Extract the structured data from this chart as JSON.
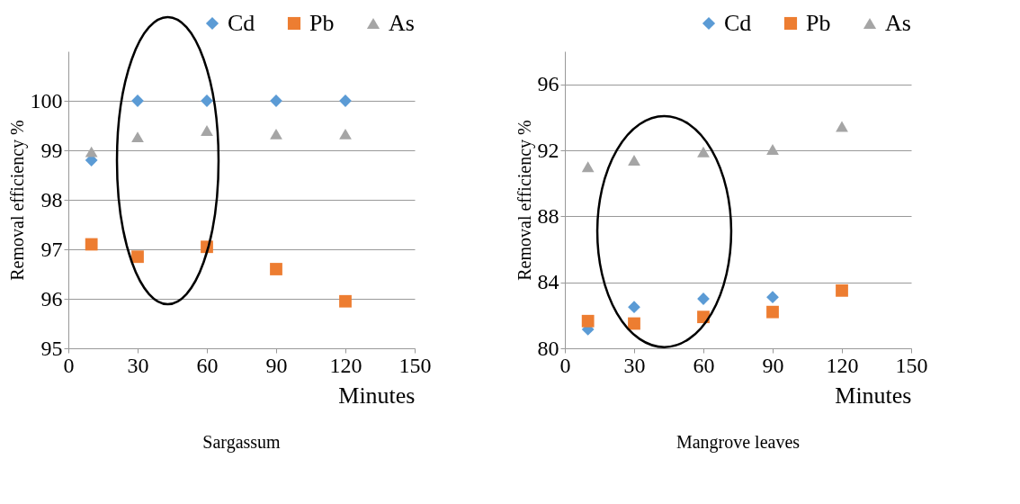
{
  "chart_data": [
    {
      "type": "scatter",
      "title": "Sargassum",
      "xlabel": "Minutes",
      "ylabel": "Removal efficiency %",
      "x": [
        10,
        30,
        60,
        90,
        120
      ],
      "xlim": [
        0,
        150
      ],
      "xticks": [
        0,
        30,
        60,
        90,
        120,
        150
      ],
      "ylim": [
        95,
        101
      ],
      "yticks": [
        95,
        96,
        97,
        98,
        99,
        100
      ],
      "grid": "y",
      "legend": "top",
      "series": [
        {
          "name": "Cd",
          "color": "#5b9bd5",
          "marker": "diamond",
          "values": [
            98.8,
            100,
            100,
            100,
            100
          ]
        },
        {
          "name": "Pb",
          "color": "#ed7d31",
          "marker": "square",
          "values": [
            97.1,
            96.85,
            97.05,
            96.6,
            95.95
          ]
        },
        {
          "name": "As",
          "color": "#a5a5a5",
          "marker": "triangle",
          "values": [
            98.97,
            99.27,
            99.4,
            99.33,
            99.33
          ]
        }
      ]
    },
    {
      "type": "scatter",
      "title": "Mangrove leaves",
      "xlabel": "Minutes",
      "ylabel": "Removal efficiency %",
      "x": [
        10,
        30,
        60,
        90,
        120
      ],
      "xlim": [
        0,
        150
      ],
      "xticks": [
        0,
        30,
        60,
        90,
        120,
        150
      ],
      "ylim": [
        80,
        98
      ],
      "yticks": [
        80,
        84,
        88,
        92,
        96
      ],
      "grid": "y",
      "legend": "top",
      "series": [
        {
          "name": "Cd",
          "color": "#5b9bd5",
          "marker": "diamond",
          "values": [
            81.15,
            82.5,
            83.0,
            83.1,
            null
          ]
        },
        {
          "name": "Pb",
          "color": "#ed7d31",
          "marker": "square",
          "values": [
            81.65,
            81.5,
            81.9,
            82.2,
            83.5
          ]
        },
        {
          "name": "As",
          "color": "#a5a5a5",
          "marker": "triangle",
          "values": [
            91.0,
            91.4,
            91.9,
            92.05,
            93.45
          ]
        }
      ]
    }
  ]
}
